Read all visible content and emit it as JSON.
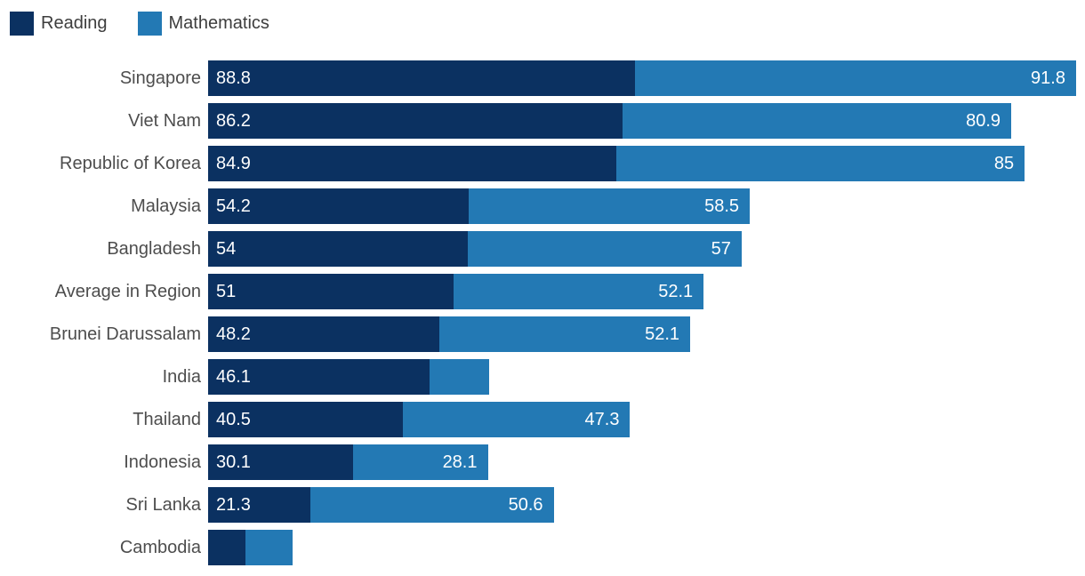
{
  "legend": {
    "items": [
      {
        "label": "Reading",
        "color": "#0b3161"
      },
      {
        "label": "Mathematics",
        "color": "#2379b4"
      }
    ]
  },
  "chart_data": {
    "type": "bar",
    "orientation": "horizontal",
    "stacked": true,
    "title": "",
    "xlabel": "",
    "ylabel": "",
    "grid": false,
    "legend_position": "top-left",
    "xlim": [
      0,
      180.6
    ],
    "bar_value_label_color": "#ffffff",
    "categories": [
      "Singapore",
      "Viet Nam",
      "Republic of Korea",
      "Malaysia",
      "Bangladesh",
      "Average in Region",
      "Brunei Darussalam",
      "India",
      "Thailand",
      "Indonesia",
      "Sri Lanka",
      "Cambodia"
    ],
    "series": [
      {
        "name": "Reading",
        "color": "#0b3161",
        "values": [
          88.8,
          86.2,
          84.9,
          54.2,
          54,
          51,
          48.2,
          46.1,
          40.5,
          30.1,
          21.3,
          7.7
        ]
      },
      {
        "name": "Mathematics",
        "color": "#2379b4",
        "values": [
          91.8,
          80.9,
          85,
          58.5,
          57,
          52.1,
          52.1,
          12.3,
          47.3,
          28.1,
          50.6,
          9.9
        ]
      }
    ],
    "data_labels": [
      {
        "reading": "88.8",
        "mathematics": "91.8"
      },
      {
        "reading": "86.2",
        "mathematics": "80.9"
      },
      {
        "reading": "84.9",
        "mathematics": "85"
      },
      {
        "reading": "54.2",
        "mathematics": "58.5"
      },
      {
        "reading": "54",
        "mathematics": "57"
      },
      {
        "reading": "51",
        "mathematics": "52.1"
      },
      {
        "reading": "48.2",
        "mathematics": "52.1"
      },
      {
        "reading": "46.1",
        "mathematics": ""
      },
      {
        "reading": "40.5",
        "mathematics": "47.3"
      },
      {
        "reading": "30.1",
        "mathematics": "28.1"
      },
      {
        "reading": "21.3",
        "mathematics": "50.6"
      },
      {
        "reading": "",
        "mathematics": ""
      }
    ]
  }
}
